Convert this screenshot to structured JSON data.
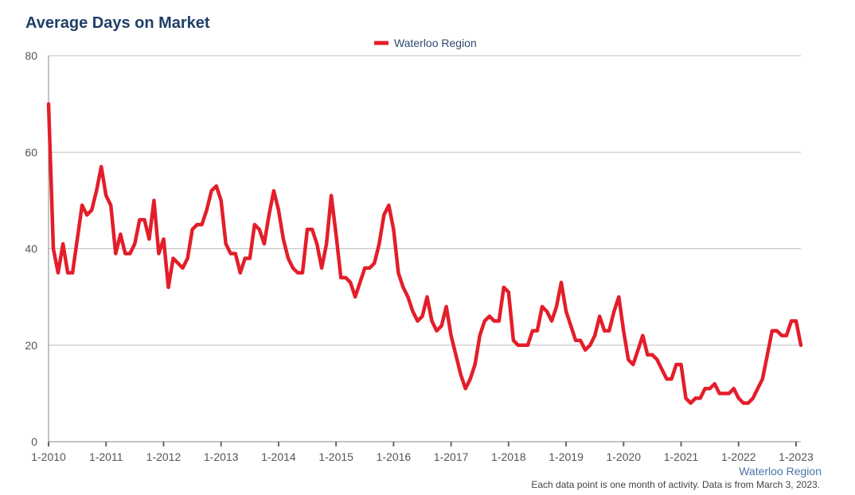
{
  "header": {
    "title": "Average Days on Market"
  },
  "footer": {
    "region_label": "Waterloo Region",
    "note": "Each data point is one month of activity. Data is from March 3, 2023."
  },
  "colors": {
    "series": "#e31e2a",
    "grid": "#c0c0c0",
    "title": "#1f3f66",
    "legend_text": "#2f4a6e",
    "axis_text": "#555555"
  },
  "chart_data": {
    "type": "line",
    "title": "Average Days on Market",
    "xlabel": "",
    "ylabel": "",
    "ylim": [
      0,
      80
    ],
    "yticks": [
      0,
      20,
      40,
      60,
      80
    ],
    "xlim": [
      "2010-01",
      "2023-02"
    ],
    "xticks": [
      "1-2010",
      "1-2011",
      "1-2012",
      "1-2013",
      "1-2014",
      "1-2015",
      "1-2016",
      "1-2017",
      "1-2018",
      "1-2019",
      "1-2020",
      "1-2021",
      "1-2022",
      "1-2023"
    ],
    "grid": true,
    "legend_position": "top-center",
    "series": [
      {
        "name": "Waterloo Region",
        "start": "2010-01",
        "frequency": "monthly",
        "values": [
          70,
          40,
          35,
          41,
          35,
          35,
          42,
          49,
          47,
          48,
          52,
          57,
          51,
          49,
          39,
          43,
          39,
          39,
          41,
          46,
          46,
          42,
          50,
          39,
          42,
          32,
          38,
          37,
          36,
          38,
          44,
          45,
          45,
          48,
          52,
          53,
          50,
          41,
          39,
          39,
          35,
          38,
          38,
          45,
          44,
          41,
          47,
          52,
          48,
          42,
          38,
          36,
          35,
          35,
          44,
          44,
          41,
          36,
          41,
          51,
          43,
          34,
          34,
          33,
          30,
          33,
          36,
          36,
          37,
          41,
          47,
          49,
          44,
          35,
          32,
          30,
          27,
          25,
          26,
          30,
          25,
          23,
          24,
          28,
          22,
          18,
          14,
          11,
          13,
          16,
          22,
          25,
          26,
          25,
          25,
          32,
          31,
          21,
          20,
          20,
          20,
          23,
          23,
          28,
          27,
          25,
          28,
          33,
          27,
          24,
          21,
          21,
          19,
          20,
          22,
          26,
          23,
          23,
          27,
          30,
          23,
          17,
          16,
          19,
          22,
          18,
          18,
          17,
          15,
          13,
          13,
          16,
          16,
          9,
          8,
          9,
          9,
          11,
          11,
          12,
          10,
          10,
          10,
          11,
          9,
          8,
          8,
          9,
          11,
          13,
          18,
          23,
          23,
          22,
          22,
          25,
          25,
          20
        ]
      }
    ]
  }
}
